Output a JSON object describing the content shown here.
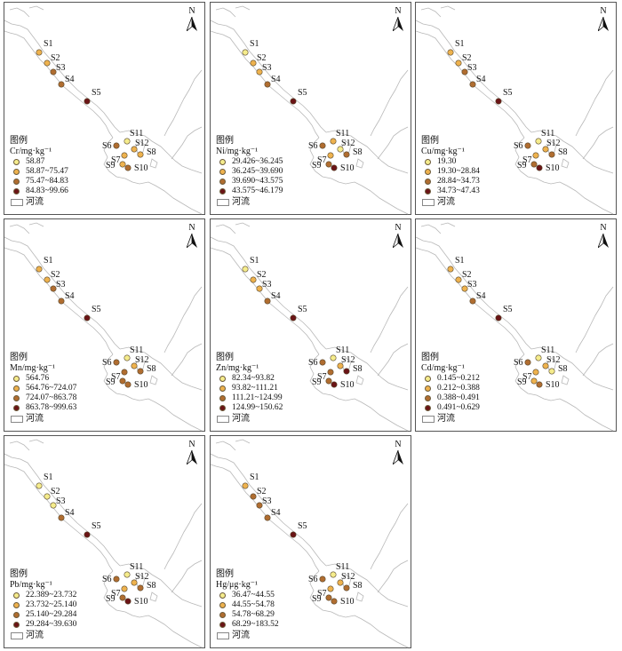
{
  "map_labels": {
    "north": "N",
    "legend_title": "图例",
    "river_label": "河流"
  },
  "class_colors": [
    "#f5ec8c",
    "#eeb24e",
    "#b06d30",
    "#6b1416"
  ],
  "sites": [
    "S1",
    "S2",
    "S3",
    "S4",
    "S5",
    "S6",
    "S7",
    "S8",
    "S9",
    "S10",
    "S11",
    "S12"
  ],
  "panels": [
    {
      "unit": "Cr/mg·kg⁻¹",
      "classes": [
        "58.87",
        "58.87~75.47",
        "75.47~84.83",
        "84.83~99.66"
      ],
      "site_class": [
        1,
        1,
        2,
        2,
        3,
        2,
        1,
        1,
        1,
        2,
        0,
        1
      ]
    },
    {
      "unit": "Ni/mg·kg⁻¹",
      "classes": [
        "29.426~36.245",
        "36.245~39.690",
        "39.690~43.575",
        "43.575~46.179"
      ],
      "site_class": [
        0,
        1,
        1,
        2,
        3,
        2,
        1,
        2,
        2,
        3,
        1,
        0
      ]
    },
    {
      "unit": "Cu/mg·kg⁻¹",
      "classes": [
        "19.30",
        "19.30~28.84",
        "28.84~34.73",
        "34.73~47.43"
      ],
      "site_class": [
        1,
        1,
        2,
        2,
        3,
        2,
        1,
        2,
        2,
        3,
        0,
        1
      ]
    },
    {
      "unit": "Mn/mg·kg⁻¹",
      "classes": [
        "564.76",
        "564.76~724.07",
        "724.07~863.78",
        "863.78~999.63"
      ],
      "site_class": [
        1,
        1,
        2,
        2,
        3,
        2,
        2,
        2,
        2,
        2,
        0,
        1
      ]
    },
    {
      "unit": "Zn/mg·kg⁻¹",
      "classes": [
        "82.34~93.82",
        "93.82~111.21",
        "111.21~124.99",
        "124.99~150.62"
      ],
      "site_class": [
        0,
        1,
        1,
        2,
        3,
        2,
        2,
        3,
        2,
        3,
        0,
        1
      ]
    },
    {
      "unit": "Cd/mg·kg⁻¹",
      "classes": [
        "0.145~0.212",
        "0.212~0.388",
        "0.388~0.491",
        "0.491~0.629"
      ],
      "site_class": [
        1,
        1,
        1,
        2,
        3,
        2,
        1,
        0,
        1,
        2,
        0,
        1
      ]
    },
    {
      "unit": "Pb/mg·kg⁻¹",
      "classes": [
        "22.389~23.732",
        "23.732~25.140",
        "25.140~29.284",
        "29.284~39.630"
      ],
      "site_class": [
        0,
        0,
        0,
        2,
        3,
        2,
        1,
        2,
        2,
        3,
        0,
        1
      ]
    },
    {
      "unit": "Hg/μg·kg⁻¹",
      "classes": [
        "36.47~44.55",
        "44.55~54.78",
        "54.78~68.29",
        "68.29~183.52"
      ],
      "site_class": [
        1,
        2,
        2,
        2,
        3,
        2,
        1,
        2,
        2,
        2,
        0,
        1
      ]
    }
  ]
}
